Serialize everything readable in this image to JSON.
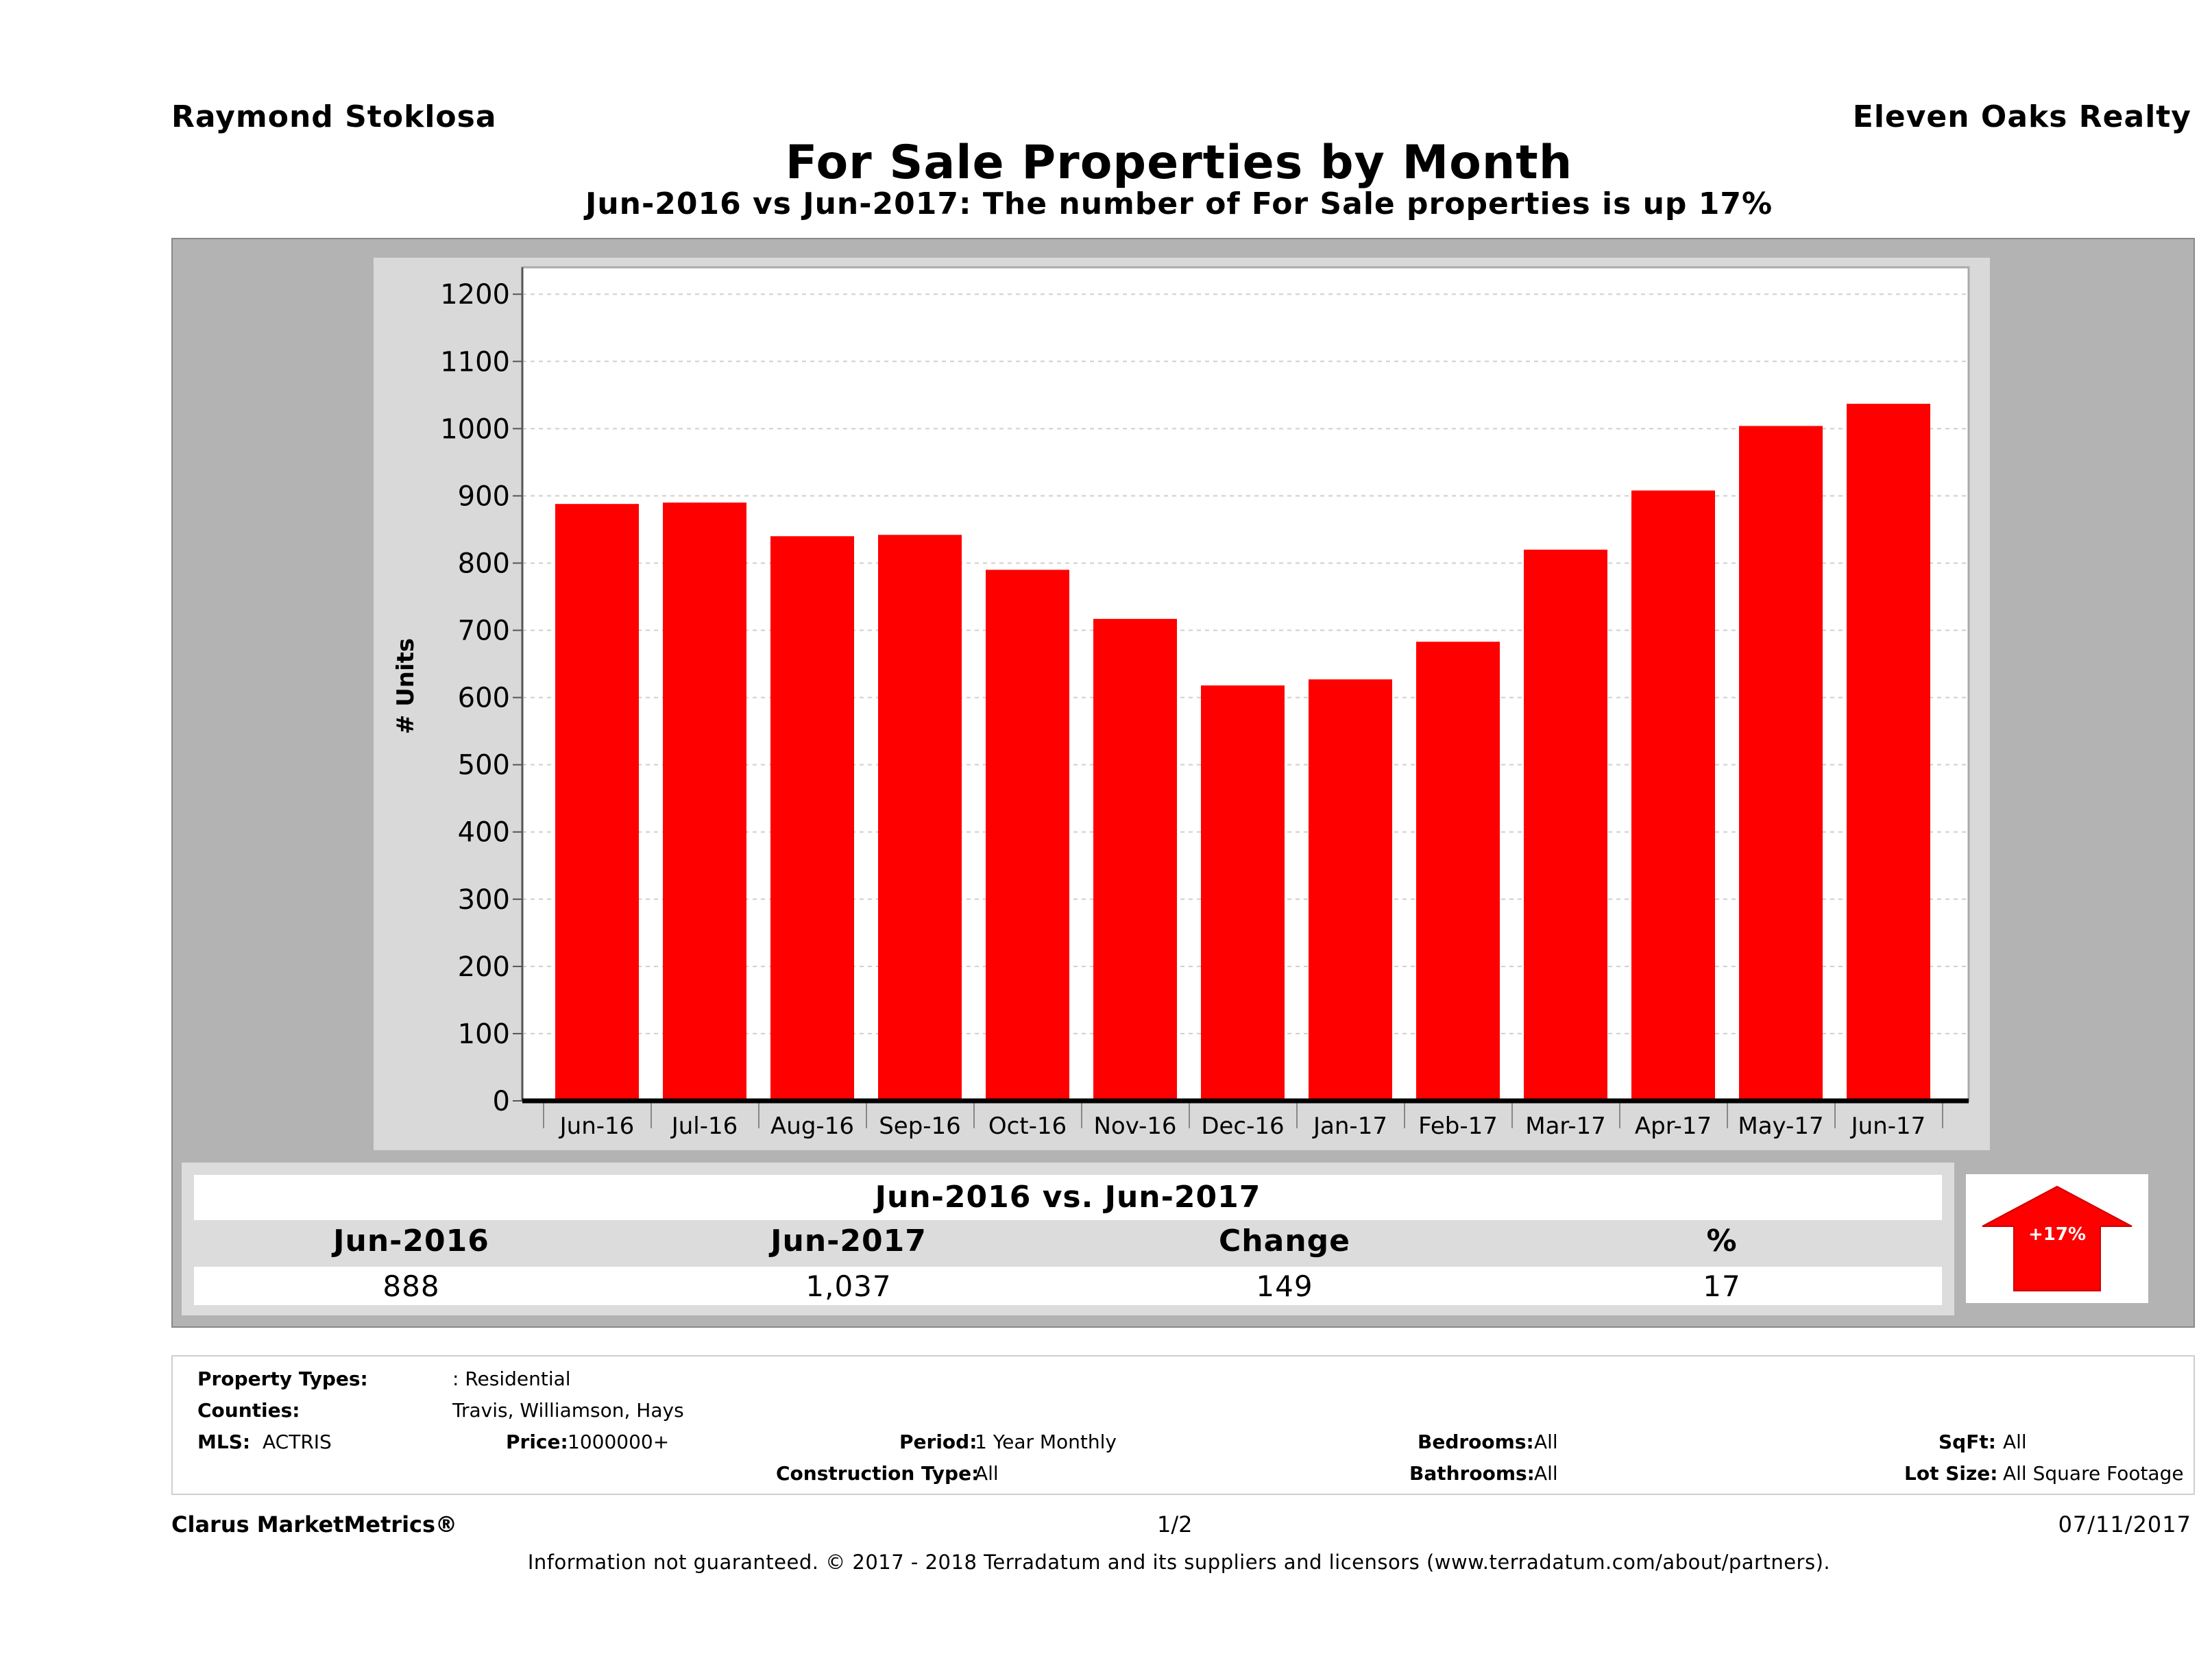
{
  "header": {
    "agent": "Raymond Stoklosa",
    "brokerage": "Eleven Oaks Realty",
    "title": "For Sale Properties by Month",
    "subtitle": "Jun-2016 vs Jun-2017: The number of For Sale  properties is up 17%"
  },
  "chart_data": {
    "type": "bar",
    "categories": [
      "Jun-16",
      "Jul-16",
      "Aug-16",
      "Sep-16",
      "Oct-16",
      "Nov-16",
      "Dec-16",
      "Jan-17",
      "Feb-17",
      "Mar-17",
      "Apr-17",
      "May-17",
      "Jun-17"
    ],
    "values": [
      888,
      890,
      840,
      842,
      790,
      717,
      618,
      627,
      683,
      820,
      908,
      1004,
      1037
    ],
    "ylabel": "# Units",
    "ylim": [
      0,
      1240
    ],
    "yticks": [
      0,
      100,
      200,
      300,
      400,
      500,
      600,
      700,
      800,
      900,
      1000,
      1100,
      1200
    ],
    "grid": true,
    "bar_color": "#ff0000"
  },
  "summary": {
    "heading": "Jun-2016 vs. Jun-2017",
    "columns": [
      {
        "label": "Jun-2016",
        "value": "888"
      },
      {
        "label": "Jun-2017",
        "value": "1,037"
      },
      {
        "label": "Change",
        "value": "149"
      },
      {
        "label": "%",
        "value": "17"
      }
    ],
    "badge": "+17%",
    "arrow_color": "#ff0000"
  },
  "filters": {
    "property_types_label": "Property Types:",
    "property_types_value": ": Residential",
    "counties_label": "Counties:",
    "counties_value": "Travis, Williamson, Hays",
    "mls_label": "MLS:",
    "mls_value": "ACTRIS",
    "price_label": "Price:",
    "price_value": "1000000+",
    "period_label": "Period:",
    "period_value": "1 Year Monthly",
    "construction_label": "Construction Type:",
    "construction_value": "All",
    "bedrooms_label": "Bedrooms:",
    "bedrooms_value": "All",
    "bathrooms_label": "Bathrooms:",
    "bathrooms_value": "All",
    "sqft_label": "SqFt:",
    "sqft_value": "All",
    "lot_label": "Lot Size:",
    "lot_value": "All Square Footage"
  },
  "footer": {
    "product": "Clarus MarketMetrics®",
    "page": "1/2",
    "date": "07/11/2017",
    "disclaimer": "Information not guaranteed. © 2017 - 2018 Terradatum and its suppliers and licensors (www.terradatum.com/about/partners)."
  }
}
